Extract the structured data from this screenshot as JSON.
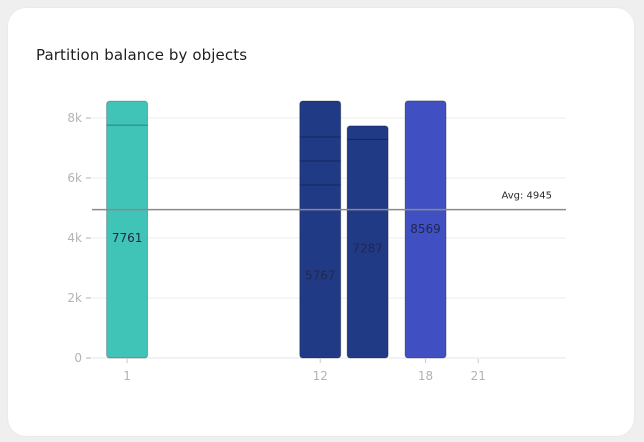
{
  "card": {
    "title": "Partition balance by objects"
  },
  "chart_data": {
    "type": "bar",
    "stacked": true,
    "title": "Partition balance by objects",
    "xlabel": "",
    "ylabel": "",
    "ylim": [
      0,
      8600
    ],
    "y_ticks": [
      {
        "value": 0,
        "label": "0"
      },
      {
        "value": 2000,
        "label": "2k"
      },
      {
        "value": 4000,
        "label": "4k"
      },
      {
        "value": 6000,
        "label": "6k"
      },
      {
        "value": 8000,
        "label": "8k"
      }
    ],
    "x_ticks": [
      {
        "value": 1,
        "label": "1"
      },
      {
        "value": 12,
        "label": "12"
      },
      {
        "value": 18,
        "label": "18"
      },
      {
        "value": 21,
        "label": "21"
      }
    ],
    "xlim": [
      -1,
      26
    ],
    "bars": [
      {
        "x": 1,
        "color": "#41c4b8",
        "segments": [
          7761,
          800
        ],
        "label": "7761",
        "label_value": 4000
      },
      {
        "x": 12,
        "color": "#213a86",
        "segments": [
          5767,
          800,
          800,
          1200
        ],
        "label": "5767",
        "label_value": 2750
      },
      {
        "x": 14.7,
        "color": "#213a86",
        "segments": [
          7287,
          450
        ],
        "label": "7287",
        "label_value": 3650
      },
      {
        "x": 18,
        "color": "#4050c2",
        "segments": [
          8569
        ],
        "label": "8569",
        "label_value": 4300
      }
    ],
    "reference_line": {
      "value": 4945,
      "label": "Avg: 4945",
      "color": "#8a8a8a"
    },
    "grid": true,
    "legend": "none"
  }
}
